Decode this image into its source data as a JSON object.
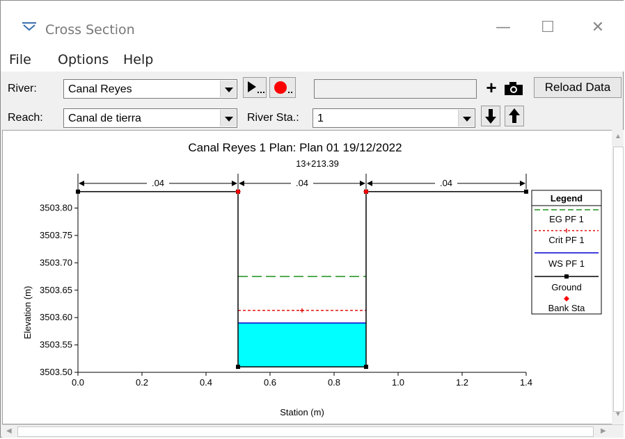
{
  "window": {
    "title": "Cross Section",
    "minimize": "—",
    "maximize": "☐",
    "close": "✕"
  },
  "menu": [
    "File",
    "Options",
    "Help"
  ],
  "toolbar": {
    "river_label": "River:",
    "river_value": "Canal Reyes",
    "reach_label": "Reach:",
    "reach_value": "Canal de tierra",
    "river_sta_label": "River Sta.:",
    "river_sta_value": "1",
    "reload_label": "Reload Data",
    "add_label": "+"
  },
  "chart_data": {
    "type": "line",
    "title": "Canal Reyes 1      Plan: Plan 01     19/12/2022",
    "subtitle": "13+213.39",
    "xlabel": "Station (m)",
    "ylabel": "Elevation (m)",
    "xlim": [
      0.0,
      1.4
    ],
    "ylim": [
      3503.5,
      3503.84
    ],
    "xticks": [
      "0.0",
      "0.2",
      "0.4",
      "0.6",
      "0.8",
      "1.0",
      "1.2",
      "1.4"
    ],
    "yticks": [
      "3503.50",
      "3503.55",
      "3503.60",
      "3503.65",
      "3503.70",
      "3503.75",
      "3503.80"
    ],
    "manning": [
      {
        "x0": 0.0,
        "x1": 0.5,
        "label": ".04"
      },
      {
        "x0": 0.5,
        "x1": 0.9,
        "label": ".04"
      },
      {
        "x0": 0.9,
        "x1": 1.4,
        "label": ".04"
      }
    ],
    "series": [
      {
        "name": "EG PF 1",
        "color": "#1a8f1a",
        "style": "long-dash",
        "y": 3503.675,
        "x": [
          0.5,
          0.9
        ]
      },
      {
        "name": "Crit PF 1",
        "color": "#e01010",
        "style": "dotted-cross",
        "y": 3503.613,
        "x": [
          0.5,
          0.9
        ]
      },
      {
        "name": "WS PF 1",
        "color": "#0000d0",
        "style": "solid-fill",
        "fill": "#00ffff",
        "y": 3503.59,
        "x": [
          0.5,
          0.9
        ]
      },
      {
        "name": "Ground",
        "color": "#000000",
        "style": "solid-square",
        "points": [
          [
            0.0,
            3503.83
          ],
          [
            0.5,
            3503.83
          ],
          [
            0.5,
            3503.51
          ],
          [
            0.9,
            3503.51
          ],
          [
            0.9,
            3503.83
          ],
          [
            1.4,
            3503.83
          ]
        ]
      },
      {
        "name": "Bank Sta",
        "color": "#ff0000",
        "style": "diamond",
        "points": [
          [
            0.5,
            3503.83
          ],
          [
            0.9,
            3503.83
          ]
        ]
      }
    ],
    "legend_title": "Legend",
    "legend_position": "right"
  }
}
